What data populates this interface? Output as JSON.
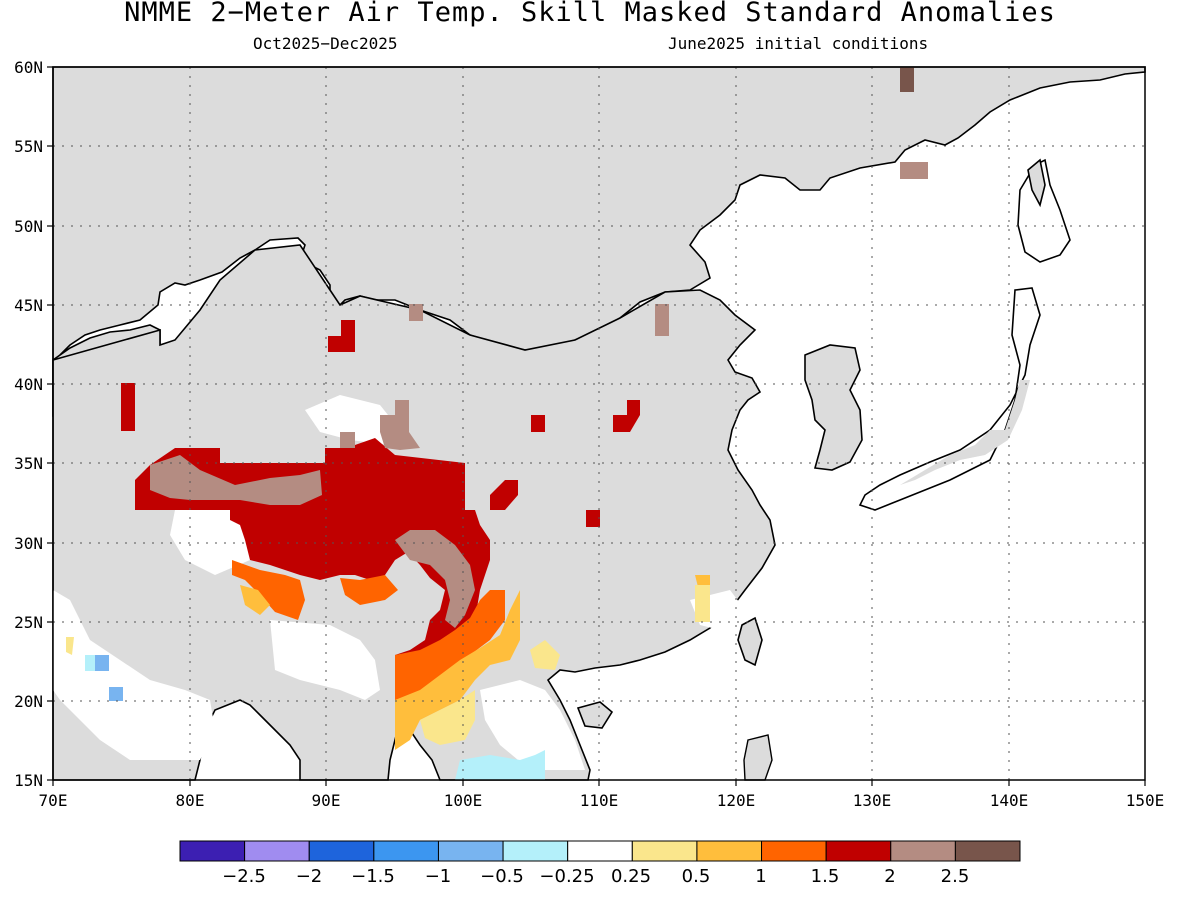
{
  "title": "NMME 2-Meter Air Temp. Skill Masked Standard Anomalies",
  "period": "Oct2025-Dec2025",
  "initial_conditions": "June2025 initial conditions",
  "map": {
    "lon_labels": [
      "70E",
      "80E",
      "90E",
      "100E",
      "110E",
      "120E",
      "130E",
      "140E",
      "150E"
    ],
    "lat_labels": [
      "60N",
      "55N",
      "50N",
      "45N",
      "40N",
      "35N",
      "30N",
      "25N",
      "20N",
      "15N"
    ],
    "land_color": "#dcdcdc",
    "coast_color": "#000000"
  },
  "colorbar": {
    "colors": [
      "#3c1fb2",
      "#a08cf0",
      "#1e64dc",
      "#3c96f0",
      "#78b4f0",
      "#b4f0fa",
      "#ffffff",
      "#fae68c",
      "#ffbe3c",
      "#ff6400",
      "#c00000",
      "#b48c82",
      "#78554b"
    ],
    "labels": [
      "-2.5",
      "-2",
      "-1.5",
      "-1",
      "-0.5",
      "-0.25",
      "0.25",
      "0.5",
      "1",
      "1.5",
      "2",
      "2.5"
    ]
  }
}
